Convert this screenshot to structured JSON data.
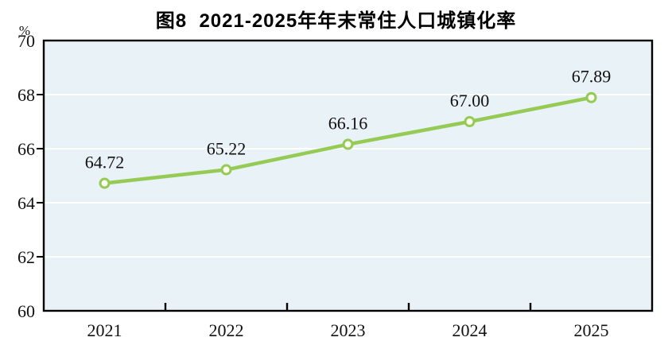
{
  "chart_data": {
    "type": "line",
    "title": "图8  2021-2025年年末常住人口城镇化率",
    "unit_label": "%",
    "categories": [
      "2021",
      "2022",
      "2023",
      "2024",
      "2025"
    ],
    "series": [
      {
        "values": [
          64.72,
          65.22,
          66.16,
          67.0,
          67.89
        ],
        "point_labels": [
          "64.72",
          "65.22",
          "66.16",
          "67.00",
          "67.89"
        ]
      }
    ],
    "xlabel": "",
    "ylabel": "%",
    "ylim": [
      60,
      70
    ],
    "yticks": [
      60,
      62,
      64,
      66,
      68,
      70
    ],
    "grid": true,
    "legend_position": "none",
    "colors": {
      "line": "#95ca55",
      "marker_fill": "#fcfdf2",
      "plot_bg": "#e9f2f6",
      "gridline": "#ffffff",
      "axis": "#000000",
      "text": "#111111",
      "title": "#000000"
    }
  }
}
